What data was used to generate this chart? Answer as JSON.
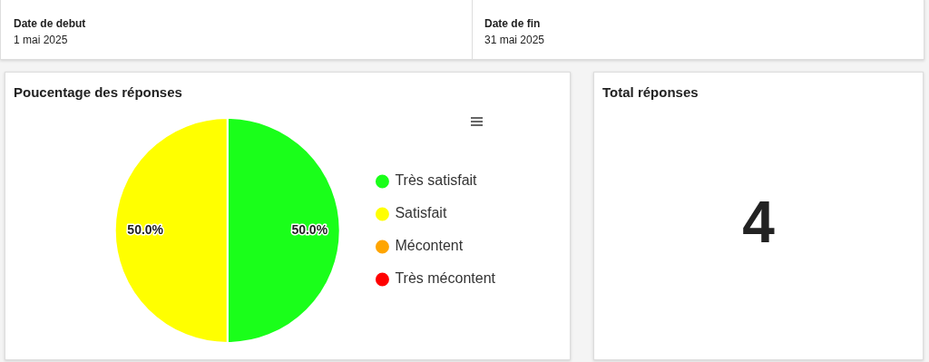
{
  "chart_data": [
    {
      "type": "other",
      "annotations": [
        "Date de debut",
        "1 mai 2025",
        "Date de fin",
        "31 mai 2025"
      ]
    },
    {
      "type": "pie",
      "title": "Poucentage des réponses",
      "categories": [
        "Très satisfait",
        "Satisfait",
        "Mécontent",
        "Très mécontent"
      ],
      "values": [
        50,
        50,
        0,
        0
      ],
      "colors": [
        "#1aff1a",
        "#ffff00",
        "#ffa500",
        "#ff0000"
      ],
      "value_labels": [
        "50.0%",
        "50.0%",
        null,
        null
      ],
      "legend": "right"
    },
    {
      "type": "other",
      "title": "Total réponses",
      "annotations": [
        "4"
      ]
    }
  ]
}
